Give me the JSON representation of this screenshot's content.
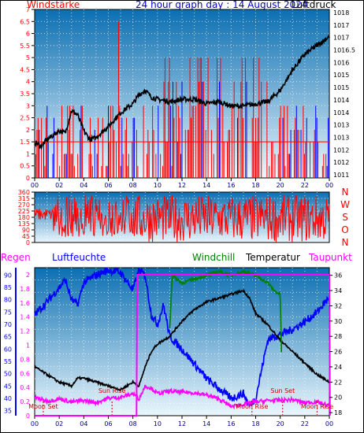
{
  "header": {
    "left_label": "Windstärke",
    "title": "24 hour graph day : 14 August 2024",
    "right_label": "Luftdruck"
  },
  "colors": {
    "wind": "#ff0000",
    "wind_blue": "#0000ff",
    "pressure": "#000000",
    "direction": "#ff0000",
    "humidity": "#0000ff",
    "windchill": "#008000",
    "temperature": "#000000",
    "dewpoint": "#ff00ff",
    "rain": "#ff00ff",
    "panel_top": "#0b6fb2",
    "panel_bottom": "#eaf6fc"
  },
  "chart_data": [
    {
      "type": "line",
      "name": "wind-pressure",
      "x_ticks": [
        "00",
        "02",
        "04",
        "06",
        "08",
        "10",
        "12",
        "14",
        "16",
        "18",
        "20",
        "22",
        "00"
      ],
      "y_left": {
        "label": "Windstärke",
        "ticks": [
          "0",
          "0.5",
          "1",
          "1.5",
          "2",
          "2.5",
          "3",
          "3.5",
          "4",
          "4.5",
          "5",
          "5.5",
          "6",
          "6.5",
          "7"
        ],
        "ylim": [
          0,
          7
        ]
      },
      "y_right": {
        "label": "Luftdruck",
        "ticks": [
          "1011",
          "1012",
          "1012",
          "1013",
          "1013",
          "1014",
          "1014",
          "1015",
          "1015",
          "1016",
          "1016.5",
          "1017",
          "1017",
          "1018"
        ],
        "ylim": [
          1010.5,
          1018
        ]
      },
      "series": [
        {
          "name": "Luftdruck",
          "axis": "right",
          "x": [
            0,
            0.5,
            1,
            1.5,
            2,
            2.5,
            3,
            3.5,
            4,
            4.5,
            5,
            6,
            7,
            8,
            8.5,
            9,
            9.5,
            10,
            11,
            12,
            13,
            14,
            15,
            16,
            17,
            18,
            19,
            20,
            21,
            22,
            23,
            24
          ],
          "y": [
            1012.1,
            1011.9,
            1012.2,
            1012.4,
            1012.6,
            1012.5,
            1013.5,
            1013.3,
            1012.6,
            1012.2,
            1012.3,
            1012.8,
            1013.4,
            1013.8,
            1014.2,
            1014.4,
            1014.1,
            1014.0,
            1013.9,
            1014.0,
            1014.0,
            1013.8,
            1013.9,
            1013.7,
            1013.7,
            1013.8,
            1013.9,
            1014.4,
            1015.3,
            1016.0,
            1016.4,
            1016.8
          ]
        }
      ]
    },
    {
      "type": "line",
      "name": "wind-direction",
      "y_left": {
        "ticks": [
          "0",
          "45",
          "90",
          "135",
          "180",
          "225",
          "270",
          "315",
          "360"
        ],
        "ylim": [
          0,
          360
        ]
      },
      "y_right_labels": [
        "N",
        "W",
        "S",
        "O",
        "N"
      ]
    },
    {
      "type": "line",
      "name": "temperature-humidity",
      "x_ticks": [
        "00",
        "02",
        "04",
        "06",
        "08",
        "10",
        "12",
        "14",
        "16",
        "18",
        "20",
        "22",
        "00"
      ],
      "legend": [
        "Regen",
        "Luftfeuchte",
        "Windchill",
        "Temperatur",
        "Taupunkt"
      ],
      "y_rain": {
        "label": "Regen",
        "ticks": [
          "0",
          "0.2",
          "0.4",
          "0.6",
          "0.8",
          "1",
          "1.2",
          "1.4",
          "1.6",
          "1.8",
          "2"
        ],
        "ylim": [
          0,
          2.1
        ]
      },
      "y_humidity": {
        "label": "Luftfeuchte",
        "ticks": [
          "35",
          "40",
          "45",
          "50",
          "55",
          "60",
          "65",
          "70",
          "75",
          "80",
          "85",
          "90"
        ],
        "ylim": [
          33,
          93
        ]
      },
      "y_temp": {
        "label": "Temperatur",
        "ticks": [
          "18",
          "20",
          "22",
          "24",
          "26",
          "28",
          "30",
          "32",
          "34",
          "36"
        ],
        "ylim": [
          17.6,
          37
        ]
      },
      "annotations": [
        {
          "text": "Moon Set",
          "x": 0.7
        },
        {
          "text": "Sun Rise",
          "x": 6.3
        },
        {
          "text": "Moon Rise",
          "x": 17.7
        },
        {
          "text": "Sun Set",
          "x": 20.2
        },
        {
          "text": "Moon Rise",
          "x": 23.0
        }
      ],
      "series": [
        {
          "name": "Luftfeuchte",
          "axis": "humidity",
          "x": [
            0,
            1,
            2,
            2.5,
            3,
            3.5,
            4,
            5,
            6,
            7,
            8,
            8.5,
            9,
            9.5,
            10,
            10.5,
            11,
            12,
            13,
            14,
            15,
            16,
            17,
            17.5,
            18,
            18.5,
            19,
            20,
            21,
            22,
            23,
            24
          ],
          "y": [
            74,
            79,
            85,
            88,
            80,
            78,
            87,
            90,
            92,
            91,
            84,
            92,
            90,
            74,
            70,
            78,
            65,
            60,
            54,
            48,
            44,
            40,
            42,
            37,
            40,
            52,
            64,
            66,
            68,
            71,
            75,
            81
          ]
        },
        {
          "name": "Temperatur",
          "axis": "temp",
          "x": [
            0,
            1,
            2,
            3,
            3.5,
            4,
            5,
            6,
            7,
            8,
            8.5,
            9,
            9.5,
            10,
            11,
            12,
            13,
            14,
            15,
            16,
            17,
            17.5,
            18,
            19,
            20,
            21,
            22,
            23,
            24
          ],
          "y": [
            24,
            23,
            22,
            21.5,
            22.5,
            22.5,
            22,
            21.5,
            21,
            22,
            21.5,
            24,
            26,
            27,
            28,
            30,
            31.5,
            32.5,
            33,
            33.5,
            34,
            33,
            31,
            29.5,
            27.5,
            26,
            24.5,
            23,
            22
          ]
        },
        {
          "name": "Windchill",
          "axis": "temp",
          "x": [
            11,
            11.2,
            12,
            13,
            14,
            15,
            16,
            17,
            18,
            19,
            19.5,
            20,
            20.1
          ],
          "y": [
            29,
            36,
            35,
            35.5,
            36,
            36.5,
            36,
            36.5,
            36,
            35,
            34,
            33.5,
            26
          ]
        },
        {
          "name": "Taupunkt",
          "axis": "temp",
          "x": [
            0,
            1,
            2,
            3,
            4,
            5,
            6,
            7,
            8,
            8.5,
            9,
            9.5,
            10,
            11,
            12,
            13,
            14,
            15,
            16,
            17,
            18,
            19,
            20,
            21,
            22,
            23,
            24
          ],
          "y": [
            20,
            19.5,
            19.8,
            19.4,
            19.6,
            19.3,
            19.9,
            20.0,
            20.5,
            19.8,
            21.5,
            21.2,
            20.5,
            20.8,
            20.7,
            20.6,
            20.3,
            19.8,
            18.8,
            19.1,
            19.4,
            19.6,
            19.6,
            19.7,
            19.3,
            19.4,
            18.9
          ]
        },
        {
          "name": "Regen",
          "axis": "rain",
          "x": [
            0,
            8.3,
            8.35,
            24,
            24.05
          ],
          "y": [
            0,
            0,
            2.0,
            2.0,
            0
          ]
        }
      ]
    }
  ]
}
